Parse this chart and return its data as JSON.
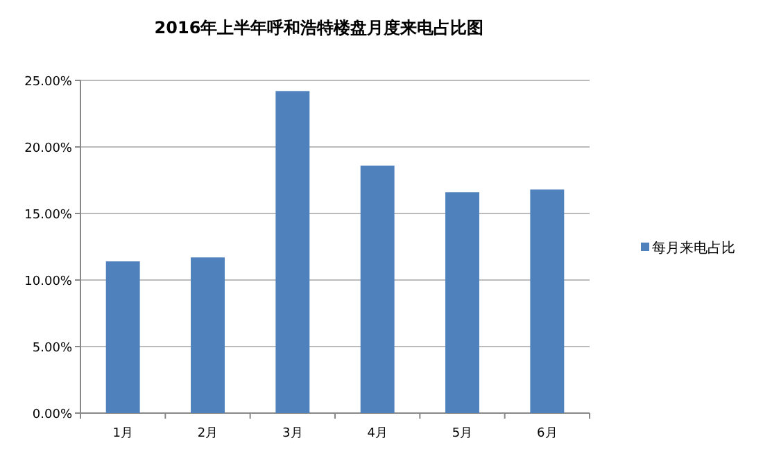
{
  "chart_data": {
    "type": "bar",
    "title": "2016年上半年呼和浩特楼盘月度来电占比图",
    "categories": [
      "1月",
      "2月",
      "3月",
      "4月",
      "5月",
      "6月"
    ],
    "series": [
      {
        "name": "每月来电占比",
        "color": "#4f81bd",
        "values": [
          11.4,
          11.7,
          24.2,
          18.6,
          16.6,
          16.8
        ]
      }
    ],
    "ylim": [
      0,
      25
    ],
    "yticks": [
      {
        "value": 0,
        "label": "0.00%"
      },
      {
        "value": 5,
        "label": "5.00%"
      },
      {
        "value": 10,
        "label": "10.00%"
      },
      {
        "value": 15,
        "label": "15.00%"
      },
      {
        "value": 20,
        "label": "20.00%"
      },
      {
        "value": 25,
        "label": "25.00%"
      }
    ],
    "grid": "y",
    "legend": "right"
  }
}
